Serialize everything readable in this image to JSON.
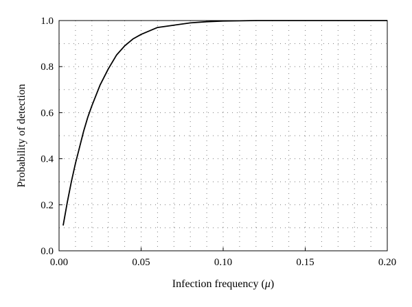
{
  "chart_data": {
    "type": "line",
    "title": "",
    "xlabel": "Infection frequency (μ)",
    "xlabel_prefix": "Infection frequency (",
    "xlabel_symbol": "μ",
    "xlabel_suffix": ")",
    "ylabel": "Probability of detection",
    "xlim": [
      0.0,
      0.2
    ],
    "ylim": [
      0.0,
      1.0
    ],
    "x_ticks": [
      "0.00",
      "0.05",
      "0.10",
      "0.15",
      "0.20"
    ],
    "y_ticks": [
      "0.0",
      "0.2",
      "0.4",
      "0.6",
      "0.8",
      "1.0"
    ],
    "grid": true,
    "legend": false,
    "series": [
      {
        "color": "#000000",
        "x": [
          0.0025,
          0.005,
          0.0075,
          0.01,
          0.0125,
          0.015,
          0.0175,
          0.02,
          0.025,
          0.03,
          0.035,
          0.04,
          0.045,
          0.05,
          0.06,
          0.07,
          0.08,
          0.09,
          0.1,
          0.11,
          0.12,
          0.14,
          0.16,
          0.18,
          0.2
        ],
        "y": [
          0.11,
          0.21,
          0.3,
          0.38,
          0.45,
          0.52,
          0.58,
          0.63,
          0.72,
          0.79,
          0.85,
          0.89,
          0.92,
          0.94,
          0.97,
          0.98,
          0.99,
          0.995,
          0.998,
          0.999,
          1.0,
          1.0,
          1.0,
          1.0,
          1.0
        ]
      }
    ]
  }
}
